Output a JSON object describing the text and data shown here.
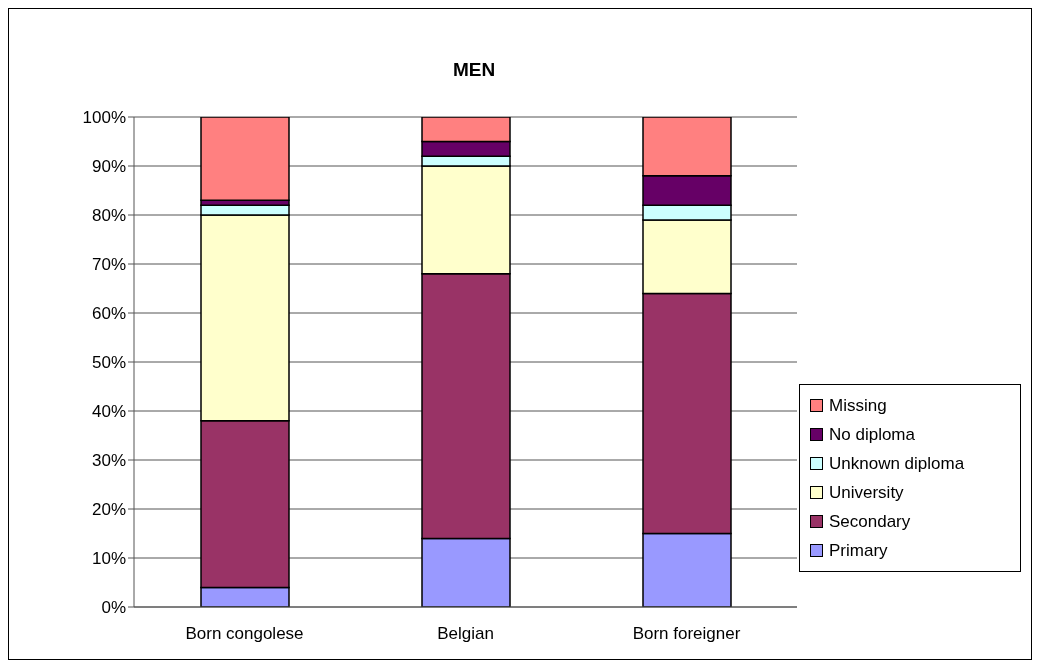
{
  "chart_data": {
    "type": "bar",
    "title": "MEN",
    "stacked": true,
    "categories": [
      "Born congolese",
      "Belgian",
      "Born foreigner"
    ],
    "series": [
      {
        "name": "Primary",
        "color": "#9999ff",
        "values": [
          4,
          14,
          15
        ]
      },
      {
        "name": "Secondary",
        "color": "#993366",
        "values": [
          34,
          54,
          49
        ]
      },
      {
        "name": "University",
        "color": "#ffffcc",
        "values": [
          42,
          22,
          15
        ]
      },
      {
        "name": "Unknown diploma",
        "color": "#ccffff",
        "values": [
          2,
          2,
          3
        ]
      },
      {
        "name": "No diploma",
        "color": "#660066",
        "values": [
          1,
          3,
          6
        ]
      },
      {
        "name": "Missing",
        "color": "#ff8080",
        "values": [
          17,
          5,
          12
        ]
      }
    ],
    "ylim": [
      0,
      100
    ],
    "yticks": [
      {
        "value": 0,
        "label": "0%"
      },
      {
        "value": 10,
        "label": "10%"
      },
      {
        "value": 20,
        "label": "20%"
      },
      {
        "value": 30,
        "label": "30%"
      },
      {
        "value": 40,
        "label": "40%"
      },
      {
        "value": 50,
        "label": "50%"
      },
      {
        "value": 60,
        "label": "60%"
      },
      {
        "value": 70,
        "label": "70%"
      },
      {
        "value": 80,
        "label": "80%"
      },
      {
        "value": 90,
        "label": "90%"
      },
      {
        "value": 100,
        "label": "100%"
      }
    ],
    "grid": "y",
    "legend": "right"
  }
}
